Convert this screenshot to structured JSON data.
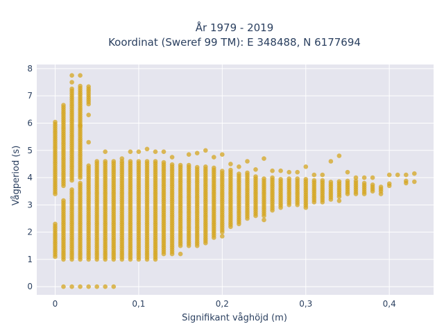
{
  "chart_data": {
    "type": "scatter",
    "title_line1": "År 1979 - 2019",
    "title_line2": "Koordinat (Sweref 99 TM): E 348488, N 6177694",
    "xlabel": "Signifikant våghöjd (m)",
    "ylabel": "Vågperiod (s)",
    "xlim": [
      -0.022,
      0.453
    ],
    "ylim": [
      -0.3,
      8.15
    ],
    "x_ticks": [
      0,
      0.1,
      0.2,
      0.3,
      0.4
    ],
    "x_tick_labels": [
      "0",
      "0,1",
      "0,2",
      "0,3",
      "0,4"
    ],
    "y_ticks": [
      0,
      1,
      2,
      3,
      4,
      5,
      6,
      7,
      8
    ],
    "y_tick_labels": [
      "0",
      "1",
      "2",
      "3",
      "4",
      "5",
      "6",
      "7",
      "8"
    ],
    "grid": true,
    "marker_color": "#d4a520",
    "plot_background": "#e5e5ee",
    "point_groups": [
      {
        "x": 0.0,
        "ranges": [
          [
            3.4,
            6.1
          ],
          [
            1.1,
            2.3
          ]
        ]
      },
      {
        "x": 0.01,
        "ranges": [
          [
            3.7,
            6.7
          ],
          [
            1.0,
            3.2
          ]
        ],
        "extra": [
          0
        ]
      },
      {
        "x": 0.02,
        "ranges": [
          [
            3.9,
            7.3
          ],
          [
            1.0,
            3.6
          ]
        ],
        "extra": [
          0,
          7.5,
          7.75
        ]
      },
      {
        "x": 0.03,
        "ranges": [
          [
            4.0,
            7.4
          ],
          [
            1.0,
            3.8
          ]
        ],
        "extra": [
          0,
          7.75,
          5.9
        ]
      },
      {
        "x": 0.04,
        "ranges": [
          [
            1.0,
            4.5
          ],
          [
            6.7,
            7.4
          ]
        ],
        "extra": [
          0,
          5.3,
          6.3
        ]
      },
      {
        "x": 0.05,
        "ranges": [
          [
            1.0,
            4.6
          ]
        ],
        "extra": [
          0
        ]
      },
      {
        "x": 0.06,
        "ranges": [
          [
            1.0,
            4.6
          ]
        ],
        "extra": [
          0,
          4.95
        ]
      },
      {
        "x": 0.07,
        "ranges": [
          [
            1.0,
            4.6
          ]
        ],
        "extra": [
          0
        ]
      },
      {
        "x": 0.08,
        "ranges": [
          [
            1.0,
            4.6
          ]
        ],
        "extra": [
          4.7
        ]
      },
      {
        "x": 0.09,
        "ranges": [
          [
            1.0,
            4.6
          ]
        ],
        "extra": [
          4.95
        ]
      },
      {
        "x": 0.1,
        "ranges": [
          [
            1.0,
            4.6
          ]
        ],
        "extra": [
          4.95
        ]
      },
      {
        "x": 0.11,
        "ranges": [
          [
            1.0,
            4.6
          ]
        ],
        "extra": [
          5.05
        ]
      },
      {
        "x": 0.12,
        "ranges": [
          [
            1.0,
            4.6
          ]
        ],
        "extra": [
          4.95
        ]
      },
      {
        "x": 0.13,
        "ranges": [
          [
            1.2,
            4.6
          ]
        ],
        "extra": [
          4.95
        ]
      },
      {
        "x": 0.14,
        "ranges": [
          [
            1.2,
            4.5
          ]
        ],
        "extra": [
          4.75
        ]
      },
      {
        "x": 0.15,
        "ranges": [
          [
            1.5,
            4.5
          ]
        ],
        "extra": [
          1.2
        ]
      },
      {
        "x": 0.16,
        "ranges": [
          [
            1.5,
            4.5
          ]
        ],
        "extra": [
          4.85
        ]
      },
      {
        "x": 0.17,
        "ranges": [
          [
            1.5,
            4.4
          ]
        ],
        "extra": [
          4.9
        ]
      },
      {
        "x": 0.18,
        "ranges": [
          [
            1.6,
            4.4
          ]
        ],
        "extra": [
          5.0
        ]
      },
      {
        "x": 0.19,
        "ranges": [
          [
            1.8,
            4.4
          ]
        ],
        "extra": [
          4.75
        ]
      },
      {
        "x": 0.2,
        "ranges": [
          [
            2.0,
            4.3
          ]
        ],
        "extra": [
          4.85,
          1.85
        ]
      },
      {
        "x": 0.21,
        "ranges": [
          [
            2.2,
            4.3
          ]
        ],
        "extra": [
          4.5
        ]
      },
      {
        "x": 0.22,
        "ranges": [
          [
            2.3,
            4.2
          ]
        ],
        "extra": [
          4.4
        ]
      },
      {
        "x": 0.23,
        "ranges": [
          [
            2.5,
            4.2
          ]
        ],
        "extra": [
          4.6
        ]
      },
      {
        "x": 0.24,
        "ranges": [
          [
            2.6,
            4.1
          ]
        ],
        "extra": [
          4.3
        ]
      },
      {
        "x": 0.25,
        "ranges": [
          [
            2.6,
            4.0
          ]
        ],
        "extra": [
          4.7,
          2.45
        ]
      },
      {
        "x": 0.26,
        "ranges": [
          [
            2.8,
            4.0
          ]
        ],
        "extra": [
          4.25
        ]
      },
      {
        "x": 0.27,
        "ranges": [
          [
            2.9,
            4.0
          ]
        ],
        "extra": [
          4.25
        ]
      },
      {
        "x": 0.28,
        "ranges": [
          [
            3.0,
            4.0
          ]
        ],
        "extra": [
          4.2
        ]
      },
      {
        "x": 0.29,
        "ranges": [
          [
            3.0,
            4.0
          ]
        ],
        "extra": [
          4.2
        ]
      },
      {
        "x": 0.3,
        "ranges": [
          [
            2.9,
            4.0
          ]
        ],
        "extra": [
          4.4
        ]
      },
      {
        "x": 0.31,
        "ranges": [
          [
            3.1,
            3.9
          ]
        ],
        "extra": [
          4.1
        ]
      },
      {
        "x": 0.32,
        "ranges": [
          [
            3.1,
            3.9
          ]
        ],
        "extra": [
          4.1
        ]
      },
      {
        "x": 0.33,
        "ranges": [
          [
            3.2,
            3.9
          ]
        ],
        "extra": [
          4.6
        ]
      },
      {
        "x": 0.34,
        "ranges": [
          [
            3.3,
            3.9
          ]
        ],
        "extra": [
          4.8,
          3.15
        ]
      },
      {
        "x": 0.35,
        "ranges": [
          [
            3.4,
            3.9
          ]
        ],
        "extra": [
          4.2
        ]
      },
      {
        "x": 0.36,
        "ranges": [
          [
            3.4,
            3.9
          ]
        ],
        "extra": [
          4.0
        ]
      },
      {
        "x": 0.37,
        "ranges": [
          [
            3.4,
            3.8
          ]
        ],
        "extra": [
          4.0
        ]
      },
      {
        "x": 0.38,
        "ranges": [
          [
            3.5,
            3.8
          ]
        ],
        "extra": [
          4.0
        ]
      },
      {
        "x": 0.39,
        "ranges": [
          [
            3.5,
            3.7
          ]
        ],
        "extra": [
          3.4
        ]
      },
      {
        "x": 0.4,
        "ranges": [
          [
            3.7,
            3.8
          ]
        ],
        "extra": [
          4.1
        ]
      },
      {
        "x": 0.41,
        "ranges": [],
        "extra": [
          4.1
        ]
      },
      {
        "x": 0.42,
        "ranges": [
          [
            3.8,
            3.9
          ]
        ],
        "extra": [
          4.1
        ]
      },
      {
        "x": 0.43,
        "ranges": [
          [
            3.85,
            3.9
          ]
        ],
        "extra": [
          4.15
        ]
      }
    ]
  }
}
